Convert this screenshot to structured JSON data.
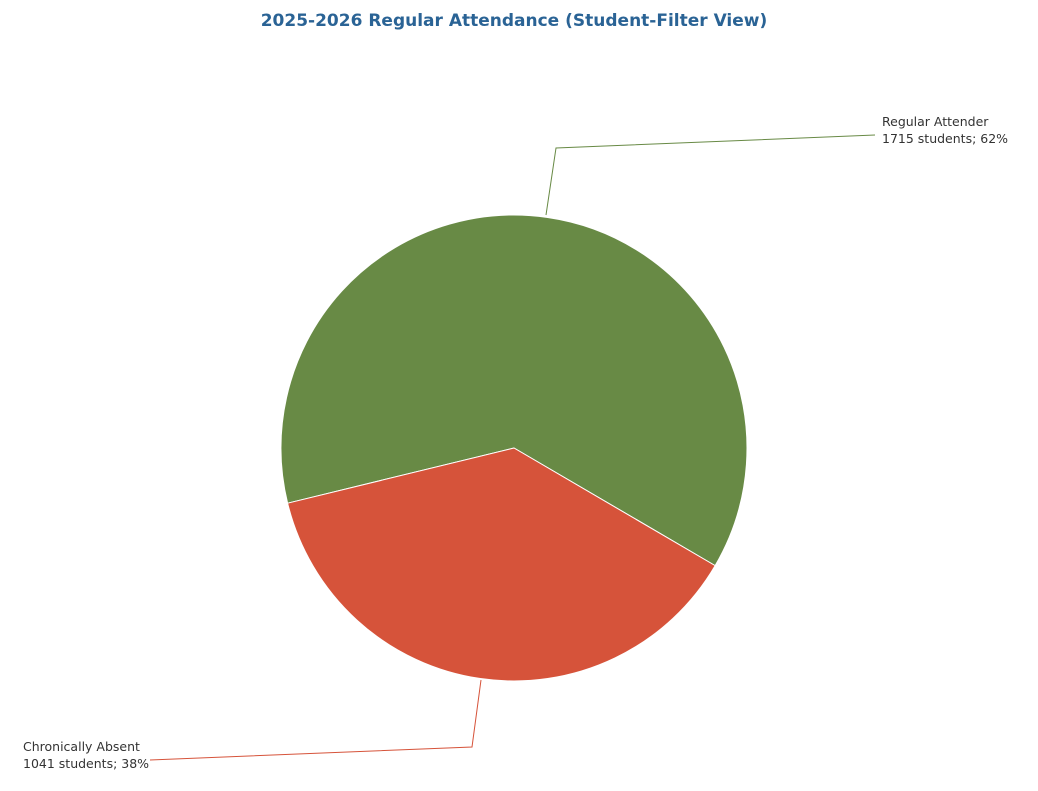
{
  "chart_data": {
    "type": "pie",
    "title": "2025-2026 Regular Attendance (Student-Filter View)",
    "categories": [
      "Regular Attender",
      "Chronically Absent"
    ],
    "values": [
      1715,
      1041
    ],
    "value_labels": [
      "1715 students; 62%",
      "1041 students; 38%"
    ],
    "colors": [
      "#688a45",
      "#d6533a"
    ]
  }
}
